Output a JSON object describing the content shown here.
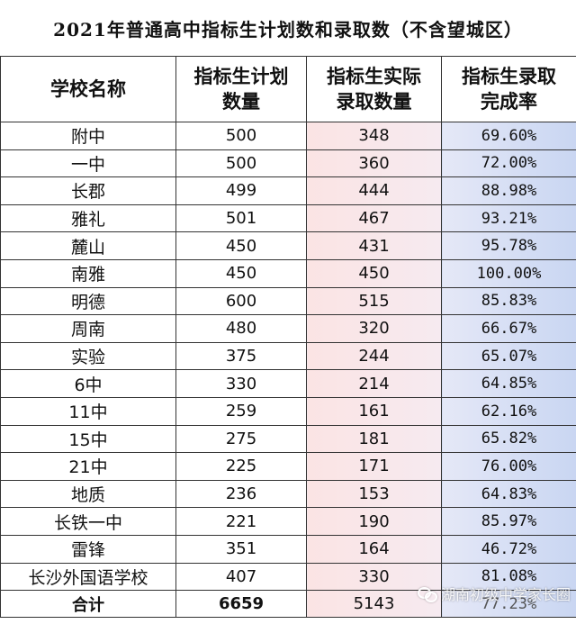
{
  "title": "2021年普通高中指标生计划数和录取数（不含望城区）",
  "headers": {
    "school": "学校名称",
    "plan": [
      "指标生计划",
      "数量"
    ],
    "actual": [
      "指标生实际",
      "录取数量"
    ],
    "rate": [
      "指标生录取",
      "完成率"
    ]
  },
  "rows": [
    {
      "school": "附中",
      "plan": "500",
      "actual": "348",
      "rate": "69.60%"
    },
    {
      "school": "一中",
      "plan": "500",
      "actual": "360",
      "rate": "72.00%"
    },
    {
      "school": "长郡",
      "plan": "499",
      "actual": "444",
      "rate": "88.98%"
    },
    {
      "school": "雅礼",
      "plan": "501",
      "actual": "467",
      "rate": "93.21%"
    },
    {
      "school": "麓山",
      "plan": "450",
      "actual": "431",
      "rate": "95.78%"
    },
    {
      "school": "南雅",
      "plan": "450",
      "actual": "450",
      "rate": "100.00%"
    },
    {
      "school": "明德",
      "plan": "600",
      "actual": "515",
      "rate": "85.83%"
    },
    {
      "school": "周南",
      "plan": "480",
      "actual": "320",
      "rate": "66.67%"
    },
    {
      "school": "实验",
      "plan": "375",
      "actual": "244",
      "rate": "65.07%"
    },
    {
      "school": "6中",
      "plan": "330",
      "actual": "214",
      "rate": "64.85%"
    },
    {
      "school": "11中",
      "plan": "259",
      "actual": "161",
      "rate": "62.16%"
    },
    {
      "school": "15中",
      "plan": "275",
      "actual": "181",
      "rate": "65.82%"
    },
    {
      "school": "21中",
      "plan": "225",
      "actual": "171",
      "rate": "76.00%"
    },
    {
      "school": "地质",
      "plan": "236",
      "actual": "153",
      "rate": "64.83%"
    },
    {
      "school": "长铁一中",
      "plan": "221",
      "actual": "190",
      "rate": "85.97%"
    },
    {
      "school": "雷锋",
      "plan": "351",
      "actual": "164",
      "rate": "46.72%"
    },
    {
      "school": "长沙外国语学校",
      "plan": "407",
      "actual": "330",
      "rate": "81.08%"
    }
  ],
  "total": {
    "label": "合计",
    "plan": "6659",
    "actual": "5143",
    "rate": "77.23%"
  },
  "watermark": {
    "icon": "wechat-icon",
    "text": "湖南初级中学家长圈"
  },
  "colors": {
    "actual_bg": "#fbe4e4",
    "rate_bg": "#c9d6f2"
  }
}
